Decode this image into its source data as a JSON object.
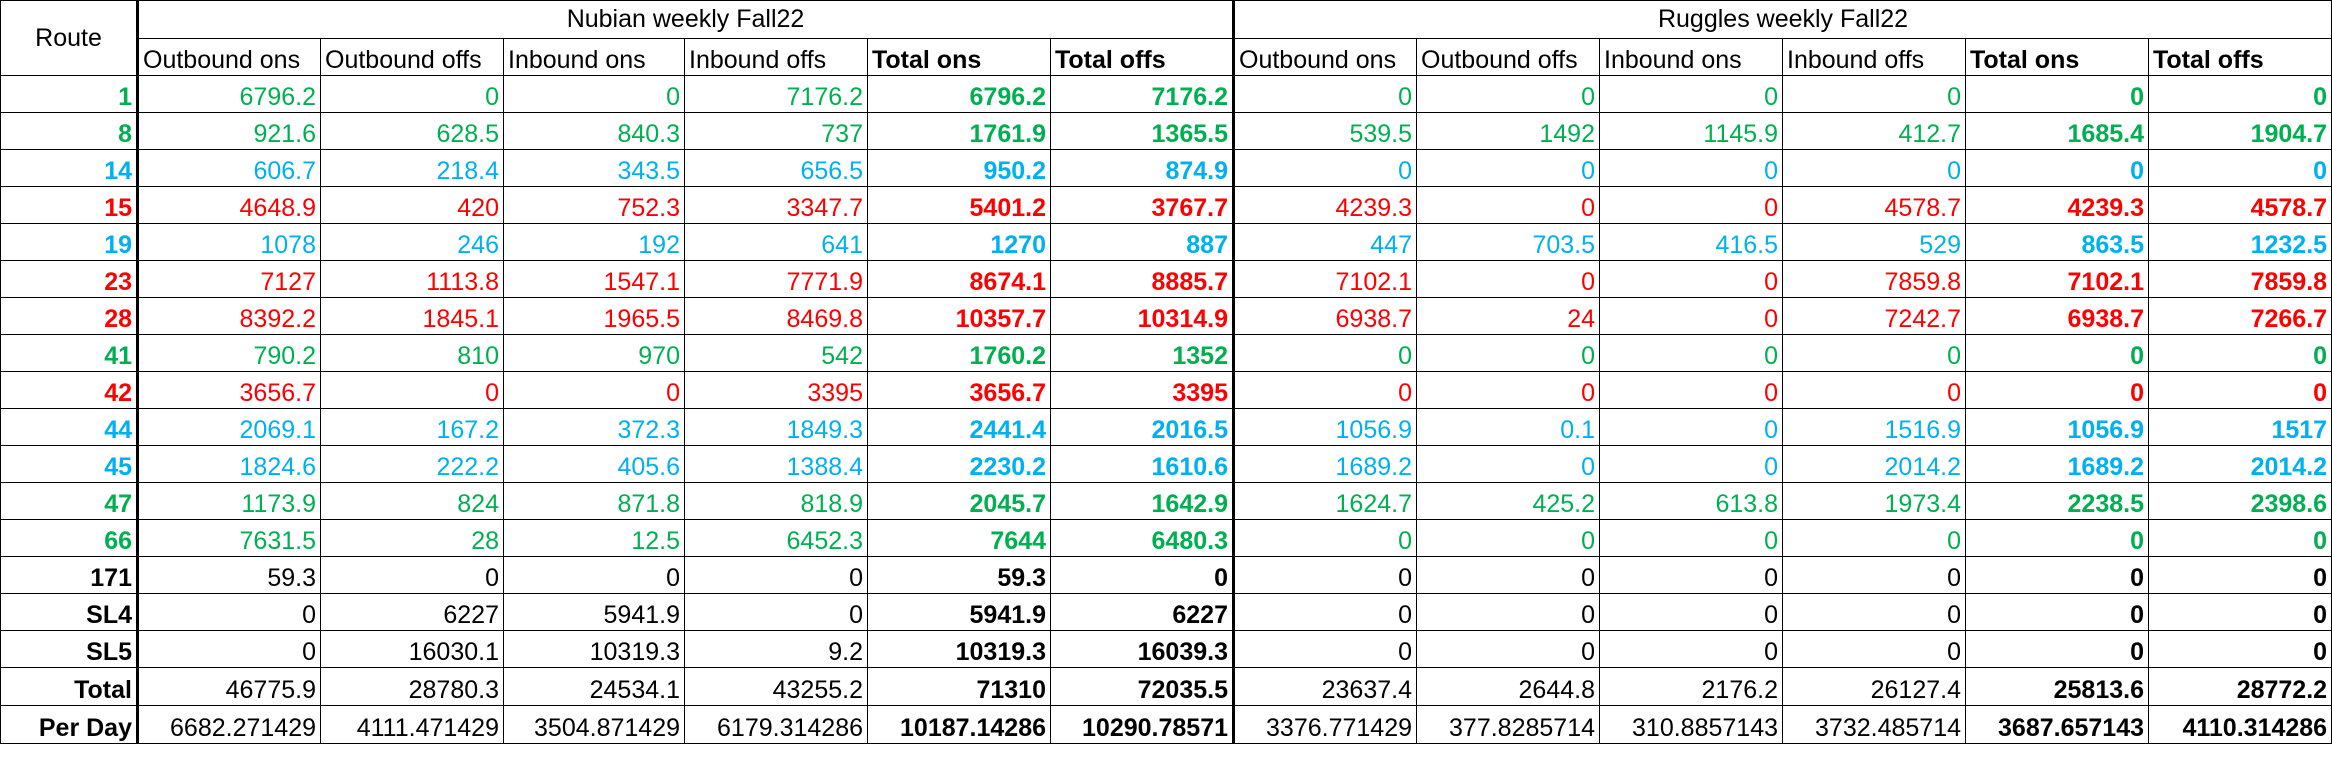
{
  "colors": {
    "green": "#00b050",
    "blue": "#00b0f0",
    "red": "#ff0000",
    "black": "#000000"
  },
  "header": {
    "route_label": "Route",
    "nubian_title": "Nubian weekly Fall22",
    "ruggles_title": "Ruggles weekly Fall22",
    "columns": [
      "Outbound ons",
      "Outbound offs",
      "Inbound ons",
      "Inbound offs",
      "Total ons",
      "Total offs"
    ]
  },
  "rows": [
    {
      "route": "1",
      "color": "green",
      "nubian": [
        "6796.2",
        "0",
        "0",
        "7176.2",
        "6796.2",
        "7176.2"
      ],
      "ruggles": [
        "0",
        "0",
        "0",
        "0",
        "0",
        "0"
      ]
    },
    {
      "route": "8",
      "color": "green",
      "nubian": [
        "921.6",
        "628.5",
        "840.3",
        "737",
        "1761.9",
        "1365.5"
      ],
      "ruggles": [
        "539.5",
        "1492",
        "1145.9",
        "412.7",
        "1685.4",
        "1904.7"
      ]
    },
    {
      "route": "14",
      "color": "blue",
      "nubian": [
        "606.7",
        "218.4",
        "343.5",
        "656.5",
        "950.2",
        "874.9"
      ],
      "ruggles": [
        "0",
        "0",
        "0",
        "0",
        "0",
        "0"
      ]
    },
    {
      "route": "15",
      "color": "red",
      "nubian": [
        "4648.9",
        "420",
        "752.3",
        "3347.7",
        "5401.2",
        "3767.7"
      ],
      "ruggles": [
        "4239.3",
        "0",
        "0",
        "4578.7",
        "4239.3",
        "4578.7"
      ]
    },
    {
      "route": "19",
      "color": "blue",
      "nubian": [
        "1078",
        "246",
        "192",
        "641",
        "1270",
        "887"
      ],
      "ruggles": [
        "447",
        "703.5",
        "416.5",
        "529",
        "863.5",
        "1232.5"
      ]
    },
    {
      "route": "23",
      "color": "red",
      "nubian": [
        "7127",
        "1113.8",
        "1547.1",
        "7771.9",
        "8674.1",
        "8885.7"
      ],
      "ruggles": [
        "7102.1",
        "0",
        "0",
        "7859.8",
        "7102.1",
        "7859.8"
      ]
    },
    {
      "route": "28",
      "color": "red",
      "nubian": [
        "8392.2",
        "1845.1",
        "1965.5",
        "8469.8",
        "10357.7",
        "10314.9"
      ],
      "ruggles": [
        "6938.7",
        "24",
        "0",
        "7242.7",
        "6938.7",
        "7266.7"
      ]
    },
    {
      "route": "41",
      "color": "green",
      "nubian": [
        "790.2",
        "810",
        "970",
        "542",
        "1760.2",
        "1352"
      ],
      "ruggles": [
        "0",
        "0",
        "0",
        "0",
        "0",
        "0"
      ]
    },
    {
      "route": "42",
      "color": "red",
      "nubian": [
        "3656.7",
        "0",
        "0",
        "3395",
        "3656.7",
        "3395"
      ],
      "ruggles": [
        "0",
        "0",
        "0",
        "0",
        "0",
        "0"
      ]
    },
    {
      "route": "44",
      "color": "blue",
      "nubian": [
        "2069.1",
        "167.2",
        "372.3",
        "1849.3",
        "2441.4",
        "2016.5"
      ],
      "ruggles": [
        "1056.9",
        "0.1",
        "0",
        "1516.9",
        "1056.9",
        "1517"
      ]
    },
    {
      "route": "45",
      "color": "blue",
      "nubian": [
        "1824.6",
        "222.2",
        "405.6",
        "1388.4",
        "2230.2",
        "1610.6"
      ],
      "ruggles": [
        "1689.2",
        "0",
        "0",
        "2014.2",
        "1689.2",
        "2014.2"
      ]
    },
    {
      "route": "47",
      "color": "green",
      "nubian": [
        "1173.9",
        "824",
        "871.8",
        "818.9",
        "2045.7",
        "1642.9"
      ],
      "ruggles": [
        "1624.7",
        "425.2",
        "613.8",
        "1973.4",
        "2238.5",
        "2398.6"
      ]
    },
    {
      "route": "66",
      "color": "green",
      "nubian": [
        "7631.5",
        "28",
        "12.5",
        "6452.3",
        "7644",
        "6480.3"
      ],
      "ruggles": [
        "0",
        "0",
        "0",
        "0",
        "0",
        "0"
      ]
    },
    {
      "route": "171",
      "color": "black",
      "nubian": [
        "59.3",
        "0",
        "0",
        "0",
        "59.3",
        "0"
      ],
      "ruggles": [
        "0",
        "0",
        "0",
        "0",
        "0",
        "0"
      ]
    },
    {
      "route": "SL4",
      "color": "black",
      "nubian": [
        "0",
        "6227",
        "5941.9",
        "0",
        "5941.9",
        "6227"
      ],
      "ruggles": [
        "0",
        "0",
        "0",
        "0",
        "0",
        "0"
      ]
    },
    {
      "route": "SL5",
      "color": "black",
      "nubian": [
        "0",
        "16030.1",
        "10319.3",
        "9.2",
        "10319.3",
        "16039.3"
      ],
      "ruggles": [
        "0",
        "0",
        "0",
        "0",
        "0",
        "0"
      ]
    }
  ],
  "summary": [
    {
      "label": "Total",
      "nubian": [
        "46775.9",
        "28780.3",
        "24534.1",
        "43255.2",
        "71310",
        "72035.5"
      ],
      "ruggles": [
        "23637.4",
        "2644.8",
        "2176.2",
        "26127.4",
        "25813.6",
        "28772.2"
      ]
    },
    {
      "label": "Per Day",
      "nubian": [
        "6682.271429",
        "4111.471429",
        "3504.871429",
        "6179.314286",
        "10187.14286",
        "10290.78571"
      ],
      "ruggles": [
        "3376.771429",
        "377.8285714",
        "310.8857143",
        "3732.485714",
        "3687.657143",
        "4110.314286"
      ]
    }
  ]
}
